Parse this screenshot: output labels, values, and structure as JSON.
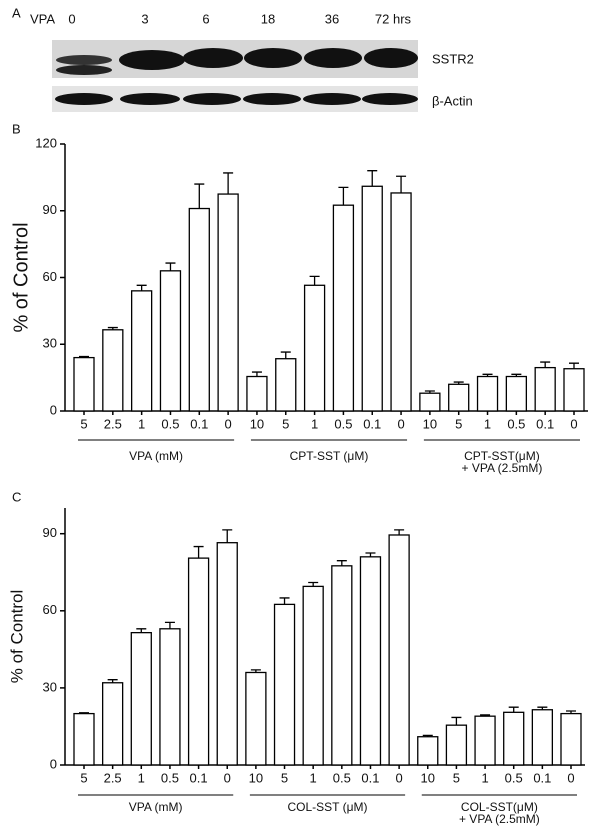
{
  "panel_a": {
    "panel": "A",
    "treatment": "VPA",
    "lanes": [
      "0",
      "3",
      "6",
      "18",
      "36",
      "72 hrs"
    ],
    "bands": [
      "SSTR2",
      "β-Actin"
    ]
  },
  "chart_data": [
    {
      "type": "bar",
      "panel": "B",
      "y_label": "% of Control",
      "color": "#ffffff",
      "categories": [
        "5",
        "2.5",
        "1",
        "0.5",
        "0.1",
        "0",
        "10",
        "5",
        "1",
        "0.5",
        "0.1",
        "0",
        "10",
        "5",
        "1",
        "0.5",
        "0.1",
        "0"
      ],
      "values": [
        24,
        36.5,
        54,
        63,
        91,
        97.5,
        15.5,
        23.5,
        56.5,
        92.5,
        101,
        98,
        8,
        12,
        15.5,
        15.5,
        19.5,
        19
      ],
      "errors": [
        0.5,
        1,
        2.5,
        3.5,
        11,
        9.5,
        2,
        3,
        4,
        8,
        7,
        7.5,
        1,
        1,
        1,
        1,
        2.5,
        2.5
      ],
      "group_labels": [
        [
          "VPA  (mM)"
        ],
        [
          "CPT-SST (μM)"
        ],
        [
          "CPT-SST(μM)",
          "+ VPA (2.5mM)"
        ]
      ],
      "ylim": [
        0,
        120
      ],
      "yticks": [
        0,
        30,
        60,
        90,
        120
      ]
    },
    {
      "type": "bar",
      "panel": "C",
      "y_label": "% of Control",
      "color": "#ffffff",
      "categories": [
        "5",
        "2.5",
        "1",
        "0.5",
        "0.1",
        "0",
        "10",
        "5",
        "1",
        "0.5",
        "0.1",
        "0",
        "10",
        "5",
        "1",
        "0.5",
        "0.1",
        "0"
      ],
      "values": [
        20,
        32,
        51.5,
        53,
        80.5,
        86.5,
        36,
        62.5,
        69.5,
        77.5,
        81,
        89.5,
        11,
        15.5,
        19,
        20.5,
        21.5,
        20
      ],
      "errors": [
        0.3,
        1.2,
        1.5,
        2.5,
        4.5,
        5,
        1,
        2.5,
        1.5,
        2,
        1.5,
        2,
        0.5,
        3,
        0.5,
        2,
        1,
        1
      ],
      "group_labels": [
        [
          "VPA  (mM)"
        ],
        [
          "COL-SST (μM)"
        ],
        [
          "COL-SST(μM)",
          "+ VPA (2.5mM)"
        ]
      ],
      "ylim": [
        0,
        100
      ],
      "yticks": [
        0,
        30,
        60,
        90
      ]
    }
  ]
}
